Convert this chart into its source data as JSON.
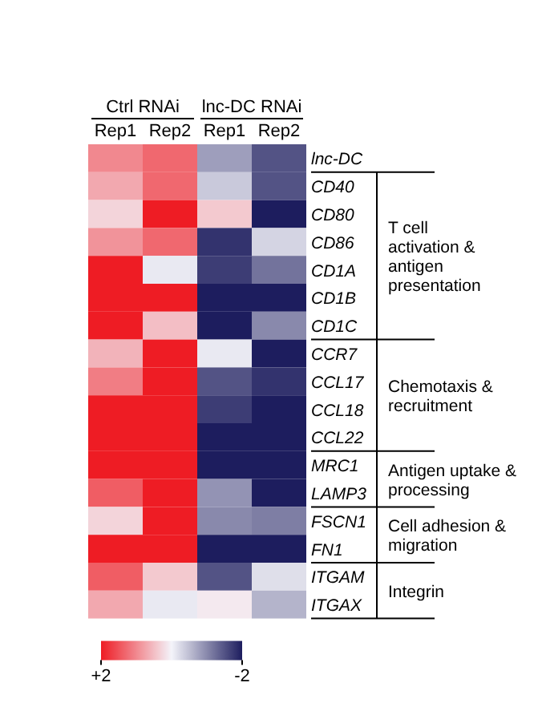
{
  "chart_data": {
    "type": "heatmap",
    "categories": [
      "Rep1",
      "Rep2",
      "Rep1",
      "Rep2"
    ],
    "y_categories": [
      "lnc-DC",
      "CD40",
      "CD80",
      "CD86",
      "CD1A",
      "CD1B",
      "CD1C",
      "CCR7",
      "CCL17",
      "CCL18",
      "CCL22",
      "MRC1",
      "LAMP3",
      "FSCN1",
      "FN1",
      "ITGAM",
      "ITGAX"
    ],
    "cells": [
      [
        1.0,
        1.3,
        -0.8,
        -1.5
      ],
      [
        0.7,
        1.3,
        -0.4,
        -1.5
      ],
      [
        0.3,
        2,
        0.4,
        -2
      ],
      [
        0.9,
        1.3,
        -1.8,
        -0.3
      ],
      [
        2,
        -0.1,
        -1.7,
        -1.2
      ],
      [
        2,
        2,
        -2,
        -2
      ],
      [
        2,
        0.5,
        -2,
        -1.0
      ],
      [
        0.6,
        2,
        -0.1,
        -2
      ],
      [
        1.1,
        2,
        -1.5,
        -1.8
      ],
      [
        2,
        2,
        -1.7,
        -2
      ],
      [
        2,
        2,
        -2,
        -2
      ],
      [
        2,
        2,
        -2,
        -2
      ],
      [
        1.4,
        2,
        -0.9,
        -2
      ],
      [
        0.3,
        2,
        -1.0,
        -1.1
      ],
      [
        2,
        2,
        -2,
        -2
      ],
      [
        1.4,
        0.4,
        -1.5,
        -0.2
      ],
      [
        0.7,
        -0.1,
        0.1,
        -0.6
      ]
    ],
    "clim": [
      2,
      -2
    ],
    "cticks": [
      {
        "value": 2,
        "label": "+2"
      },
      {
        "value": -2,
        "label": "-2"
      }
    ],
    "annotations": [
      "Ctrl RNAi",
      "lnc-DC RNAi",
      "T cell activation & antigen presentation",
      "Chemotaxis & recruitment",
      "Antigen uptake & processing",
      "Cell adhesion & migration",
      "Integrin"
    ]
  }
}
